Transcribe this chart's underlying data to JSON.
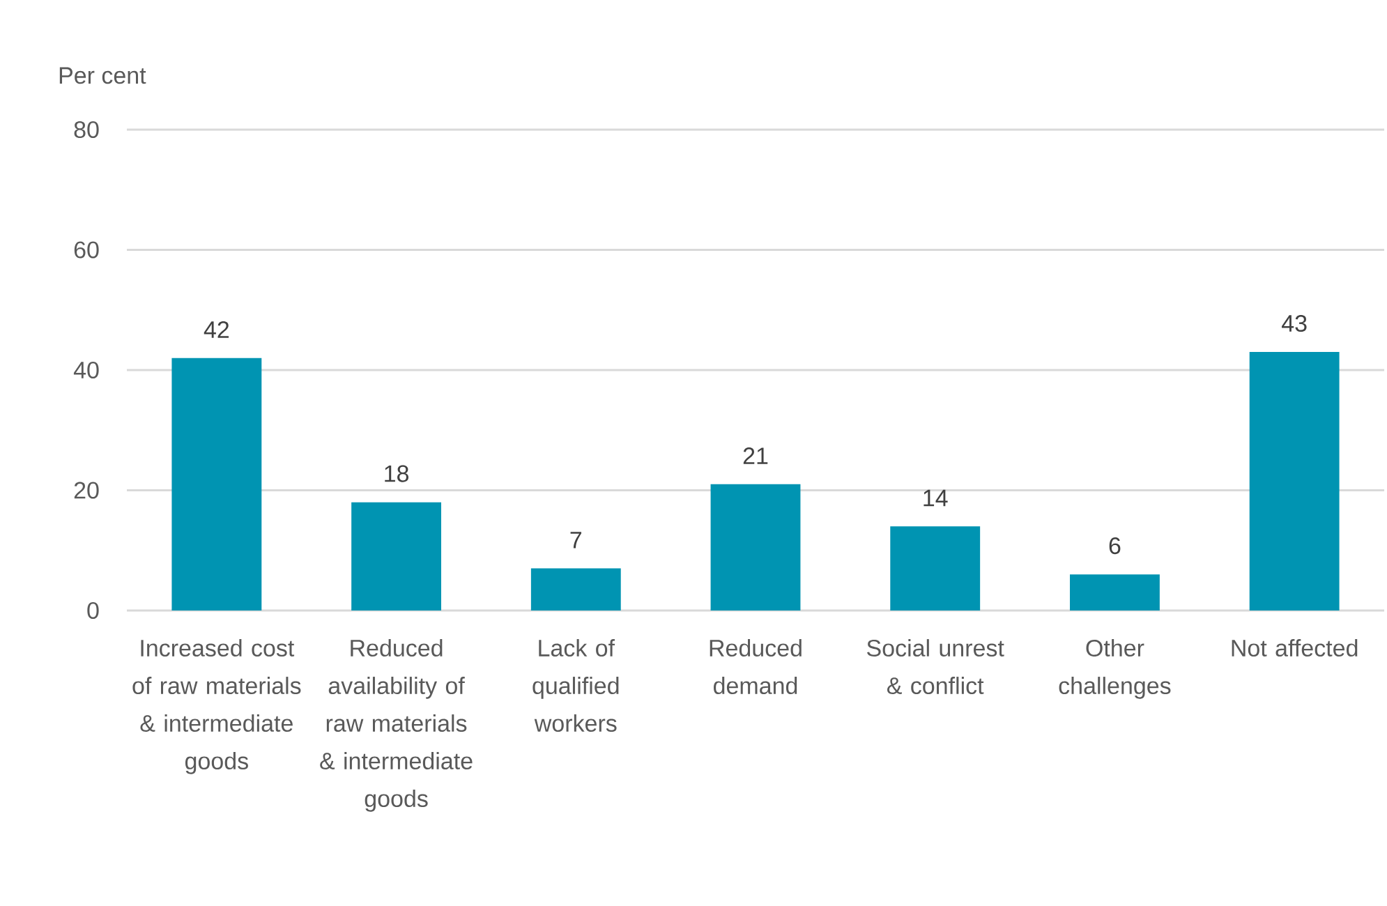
{
  "chart_data": {
    "type": "bar",
    "ylabel": "Per cent",
    "categories": [
      "Increased cost of raw materials & intermediate goods",
      "Reduced availability of raw materials & intermediate goods",
      "Lack of qualified workers",
      "Reduced demand",
      "Social unrest & conflict",
      "Other challenges",
      "Not affected"
    ],
    "values": [
      42,
      18,
      7,
      21,
      14,
      6,
      43
    ],
    "color": "#0094b2",
    "ylim": [
      0,
      80
    ],
    "yticks": [
      0,
      20,
      40,
      60,
      80
    ],
    "grid": "y",
    "data_labels": true
  }
}
